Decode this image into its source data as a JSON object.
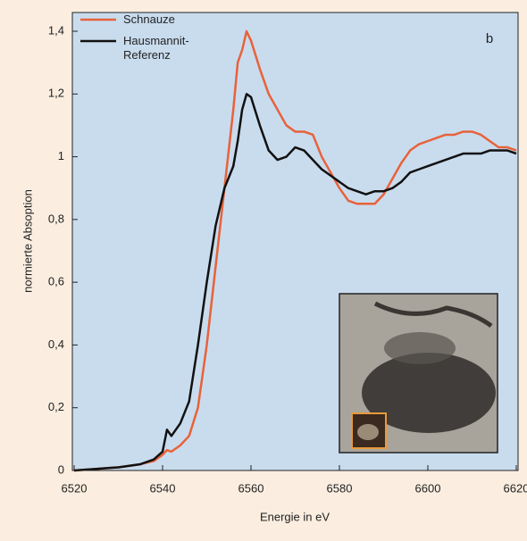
{
  "chart_data": {
    "type": "line",
    "annotation": "b",
    "xlabel": "Energie in eV",
    "ylabel": "normierte Absoption",
    "x": [
      6520,
      6525,
      6530,
      6535,
      6538,
      6540,
      6541,
      6542,
      6544,
      6546,
      6548,
      6550,
      6552,
      6554,
      6556,
      6557,
      6558,
      6559,
      6560,
      6562,
      6564,
      6566,
      6568,
      6570,
      6572,
      6574,
      6576,
      6578,
      6580,
      6582,
      6584,
      6586,
      6588,
      6590,
      6592,
      6594,
      6596,
      6598,
      6600,
      6602,
      6604,
      6606,
      6608,
      6610,
      6612,
      6614,
      6616,
      6618,
      6620
    ],
    "series": [
      {
        "name": "Schnauze",
        "color": "#e8623a",
        "values": [
          0,
          0.005,
          0.01,
          0.02,
          0.03,
          0.05,
          0.065,
          0.06,
          0.08,
          0.11,
          0.2,
          0.4,
          0.65,
          0.9,
          1.15,
          1.3,
          1.34,
          1.4,
          1.37,
          1.28,
          1.2,
          1.15,
          1.1,
          1.08,
          1.08,
          1.07,
          1.0,
          0.95,
          0.9,
          0.86,
          0.85,
          0.85,
          0.85,
          0.88,
          0.93,
          0.98,
          1.02,
          1.04,
          1.05,
          1.06,
          1.07,
          1.07,
          1.08,
          1.08,
          1.07,
          1.05,
          1.03,
          1.03,
          1.02
        ]
      },
      {
        "name": "Hausmannit-Referenz",
        "color": "#111111",
        "values": [
          0,
          0.005,
          0.01,
          0.02,
          0.035,
          0.06,
          0.13,
          0.11,
          0.15,
          0.22,
          0.4,
          0.6,
          0.78,
          0.9,
          0.97,
          1.05,
          1.15,
          1.2,
          1.19,
          1.1,
          1.02,
          0.99,
          1.0,
          1.03,
          1.02,
          0.99,
          0.96,
          0.94,
          0.92,
          0.9,
          0.89,
          0.88,
          0.89,
          0.89,
          0.9,
          0.92,
          0.95,
          0.96,
          0.97,
          0.98,
          0.99,
          1.0,
          1.01,
          1.01,
          1.01,
          1.02,
          1.02,
          1.02,
          1.01
        ]
      }
    ],
    "xlim": [
      6520,
      6620
    ],
    "xticks": [
      6520,
      6540,
      6560,
      6580,
      6600,
      6620
    ],
    "ylim": [
      0,
      1.4
    ],
    "yticks": [
      0,
      {
        "value": 0.2,
        "label": "0,2"
      },
      {
        "value": 0.4,
        "label": "0,4"
      },
      {
        "value": 0.6,
        "label": "0,6"
      },
      {
        "value": 0.8,
        "label": "0,8"
      },
      1,
      {
        "value": 1.2,
        "label": "1,2"
      },
      {
        "value": 1.4,
        "label": "1,4"
      }
    ],
    "grid": false,
    "legend": "top-left"
  }
}
